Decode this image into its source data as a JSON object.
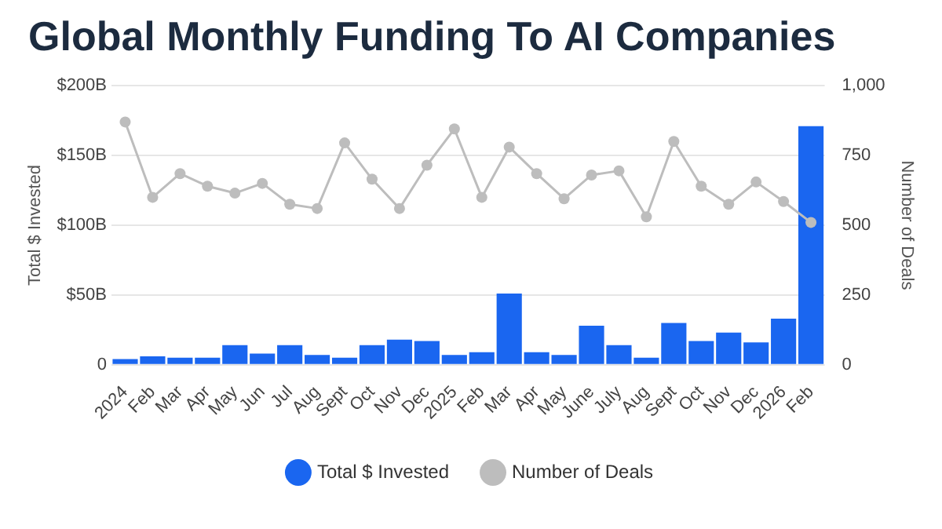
{
  "chart_data": {
    "type": "bar",
    "title": "Global Monthly Funding To AI Companies",
    "ylabel": "Total $ Invested",
    "y2label": "Number of Deals",
    "categories": [
      "2024",
      "Feb",
      "Mar",
      "Apr",
      "May",
      "Jun",
      "Jul",
      "Aug",
      "Sept",
      "Oct",
      "Nov",
      "Dec",
      "2025",
      "Feb",
      "Mar",
      "Apr",
      "May",
      "June",
      "July",
      "Aug",
      "Sept",
      "Oct",
      "Nov",
      "Dec",
      "2026",
      "Feb"
    ],
    "series": [
      {
        "name": "Total $ Invested",
        "color": "#1a66f0",
        "values": [
          4,
          6,
          5,
          5,
          14,
          8,
          14,
          7,
          5,
          14,
          18,
          17,
          7,
          9,
          51,
          9,
          7,
          28,
          14,
          5,
          30,
          17,
          23,
          16,
          33,
          171
        ]
      },
      {
        "name": "Number of Deals",
        "type": "line",
        "axis": "y2",
        "color": "#bdbdbd",
        "values": [
          870,
          600,
          685,
          640,
          615,
          650,
          575,
          560,
          795,
          665,
          560,
          715,
          845,
          600,
          780,
          685,
          595,
          680,
          695,
          530,
          800,
          640,
          575,
          655,
          585,
          510
        ]
      }
    ],
    "ylim": [
      0,
      200
    ],
    "yticks": [
      0,
      {
        "value": 50,
        "label": "$50B"
      },
      {
        "value": 100,
        "label": "$100B"
      },
      {
        "value": 150,
        "label": "$150B"
      },
      {
        "value": 200,
        "label": "$200B"
      }
    ],
    "y2lim": [
      0,
      1000
    ],
    "y2ticks": [
      0,
      250,
      500,
      750,
      {
        "value": 1000,
        "label": "1,000"
      }
    ],
    "grid": "y",
    "legend": "bottom",
    "marker": "circle"
  }
}
